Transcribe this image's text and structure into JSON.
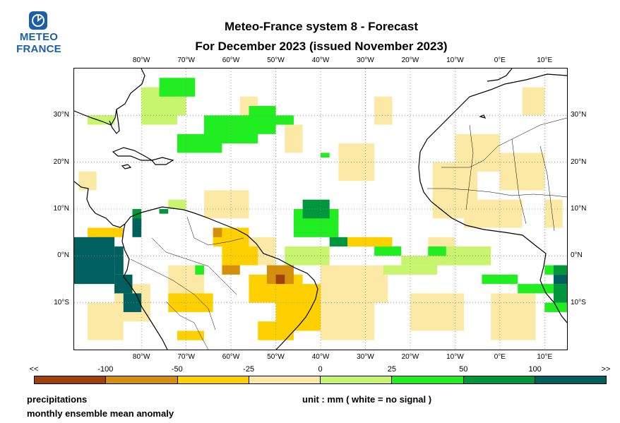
{
  "logo": {
    "line1": "METEO",
    "line2": "FRANCE",
    "color": "#1a5fa8"
  },
  "title": {
    "line1": "Meteo-France system 8  -  Forecast",
    "line2": "For December 2023      (issued November 2023)"
  },
  "map": {
    "lon_range": [
      -95,
      15
    ],
    "lat_range": [
      -20,
      40
    ],
    "lon_ticks": [
      "80°W",
      "70°W",
      "60°W",
      "50°W",
      "40°W",
      "30°W",
      "20°W",
      "10°W",
      "0°E",
      "10°E"
    ],
    "lat_ticks": [
      "30°N",
      "20°N",
      "10°N",
      "0°N",
      "10°S"
    ],
    "grid": "dotted"
  },
  "colorbar": {
    "end_left": "<<",
    "end_right": ">>",
    "ticks": [
      "-100",
      "-50",
      "-25",
      "0",
      "25",
      "50",
      "100"
    ],
    "colors": [
      "#a0410a",
      "#d4900a",
      "#ffd000",
      "#fde9a6",
      "#c8f56e",
      "#20ee20",
      "#00963c",
      "#006060"
    ]
  },
  "footer": {
    "variable": "precipitations",
    "description": "monthly ensemble mean anomaly",
    "unit": "unit : mm  ( white = no signal )"
  }
}
